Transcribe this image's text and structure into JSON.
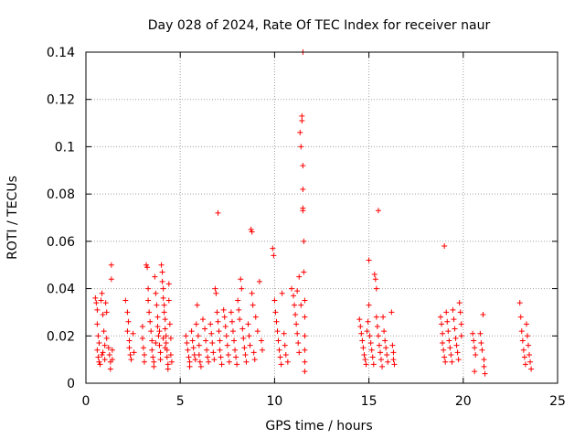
{
  "chart_data": {
    "type": "scatter",
    "title": "Day 028 of 2024, Rate Of TEC Index for receiver naur",
    "xlabel": "GPS time / hours",
    "ylabel": "ROTI / TECUs",
    "xlim": [
      0,
      25
    ],
    "ylim": [
      0,
      0.14
    ],
    "xticks": [
      0,
      5,
      10,
      15,
      20,
      25
    ],
    "xtick_labels": [
      "0",
      "5",
      "10",
      "15",
      "20",
      "25"
    ],
    "yticks": [
      0,
      0.02,
      0.04,
      0.06,
      0.08,
      0.1,
      0.12,
      0.14
    ],
    "ytick_labels": [
      "0",
      "0.02",
      "0.04",
      "0.06",
      "0.08",
      "0.1",
      "0.12",
      "0.14"
    ],
    "grid": true,
    "marker": "+",
    "color": "#ff0000",
    "series": [
      {
        "name": "ROTI",
        "points": [
          [
            0.5,
            0.036
          ],
          [
            0.55,
            0.034
          ],
          [
            0.6,
            0.031
          ],
          [
            0.6,
            0.025
          ],
          [
            0.65,
            0.02
          ],
          [
            0.7,
            0.017
          ],
          [
            0.6,
            0.014
          ],
          [
            0.65,
            0.011
          ],
          [
            0.7,
            0.009
          ],
          [
            0.75,
            0.008
          ],
          [
            0.8,
            0.035
          ],
          [
            0.85,
            0.038
          ],
          [
            0.9,
            0.029
          ],
          [
            0.95,
            0.022
          ],
          [
            1.0,
            0.016
          ],
          [
            0.9,
            0.013
          ],
          [
            0.85,
            0.012
          ],
          [
            1.0,
            0.01
          ],
          [
            1.05,
            0.034
          ],
          [
            1.1,
            0.03
          ],
          [
            1.1,
            0.019
          ],
          [
            1.2,
            0.015
          ],
          [
            1.25,
            0.012
          ],
          [
            1.3,
            0.009
          ],
          [
            1.3,
            0.006
          ],
          [
            1.35,
            0.05
          ],
          [
            1.35,
            0.044
          ],
          [
            1.4,
            0.014
          ],
          [
            1.4,
            0.01
          ],
          [
            2.1,
            0.035
          ],
          [
            2.2,
            0.03
          ],
          [
            2.25,
            0.026
          ],
          [
            2.2,
            0.022
          ],
          [
            2.3,
            0.018
          ],
          [
            2.3,
            0.015
          ],
          [
            2.35,
            0.012
          ],
          [
            2.4,
            0.01
          ],
          [
            2.5,
            0.021
          ],
          [
            2.55,
            0.013
          ],
          [
            3.0,
            0.024
          ],
          [
            3.0,
            0.019
          ],
          [
            3.05,
            0.015
          ],
          [
            3.1,
            0.012
          ],
          [
            3.1,
            0.009
          ],
          [
            3.2,
            0.05
          ],
          [
            3.25,
            0.049
          ],
          [
            3.3,
            0.04
          ],
          [
            3.3,
            0.035
          ],
          [
            3.35,
            0.03
          ],
          [
            3.4,
            0.026
          ],
          [
            3.45,
            0.022
          ],
          [
            3.5,
            0.018
          ],
          [
            3.5,
            0.014
          ],
          [
            3.55,
            0.011
          ],
          [
            3.6,
            0.009
          ],
          [
            3.6,
            0.007
          ],
          [
            3.65,
            0.045
          ],
          [
            3.7,
            0.038
          ],
          [
            3.75,
            0.033
          ],
          [
            3.8,
            0.028
          ],
          [
            3.8,
            0.024
          ],
          [
            3.85,
            0.02
          ],
          [
            3.9,
            0.016
          ],
          [
            3.95,
            0.013
          ],
          [
            3.95,
            0.01
          ],
          [
            4.0,
            0.05
          ],
          [
            4.05,
            0.047
          ],
          [
            4.05,
            0.043
          ],
          [
            4.1,
            0.04
          ],
          [
            4.1,
            0.036
          ],
          [
            4.15,
            0.033
          ],
          [
            4.15,
            0.03
          ],
          [
            4.2,
            0.027
          ],
          [
            4.2,
            0.023
          ],
          [
            4.25,
            0.02
          ],
          [
            4.25,
            0.017
          ],
          [
            4.3,
            0.014
          ],
          [
            4.3,
            0.011
          ],
          [
            4.35,
            0.008
          ],
          [
            4.35,
            0.006
          ],
          [
            4.4,
            0.042
          ],
          [
            4.4,
            0.035
          ],
          [
            4.45,
            0.025
          ],
          [
            4.5,
            0.019
          ],
          [
            4.5,
            0.012
          ],
          [
            4.55,
            0.009
          ],
          [
            3.7,
            0.017
          ],
          [
            3.9,
            0.022
          ],
          [
            4.1,
            0.019
          ],
          [
            4.2,
            0.015
          ],
          [
            5.3,
            0.02
          ],
          [
            5.35,
            0.017
          ],
          [
            5.4,
            0.014
          ],
          [
            5.45,
            0.011
          ],
          [
            5.5,
            0.009
          ],
          [
            5.5,
            0.007
          ],
          [
            5.6,
            0.022
          ],
          [
            5.65,
            0.018
          ],
          [
            5.7,
            0.015
          ],
          [
            5.75,
            0.012
          ],
          [
            5.8,
            0.01
          ],
          [
            5.85,
            0.025
          ],
          [
            5.9,
            0.033
          ],
          [
            5.95,
            0.02
          ],
          [
            6.0,
            0.016
          ],
          [
            6.0,
            0.012
          ],
          [
            6.05,
            0.009
          ],
          [
            6.1,
            0.007
          ],
          [
            6.2,
            0.027
          ],
          [
            6.3,
            0.023
          ],
          [
            6.35,
            0.018
          ],
          [
            6.4,
            0.014
          ],
          [
            6.45,
            0.011
          ],
          [
            6.5,
            0.009
          ],
          [
            6.6,
            0.025
          ],
          [
            6.65,
            0.021
          ],
          [
            6.7,
            0.017
          ],
          [
            6.75,
            0.013
          ],
          [
            6.8,
            0.01
          ],
          [
            6.85,
            0.04
          ],
          [
            6.9,
            0.038
          ],
          [
            6.95,
            0.03
          ],
          [
            7.0,
            0.072
          ],
          [
            7.0,
            0.026
          ],
          [
            7.05,
            0.022
          ],
          [
            7.1,
            0.018
          ],
          [
            7.1,
            0.014
          ],
          [
            7.15,
            0.011
          ],
          [
            7.2,
            0.008
          ],
          [
            7.3,
            0.031
          ],
          [
            7.35,
            0.028
          ],
          [
            7.4,
            0.024
          ],
          [
            7.45,
            0.02
          ],
          [
            7.5,
            0.016
          ],
          [
            7.55,
            0.012
          ],
          [
            7.6,
            0.009
          ],
          [
            7.7,
            0.03
          ],
          [
            7.75,
            0.026
          ],
          [
            7.8,
            0.022
          ],
          [
            7.85,
            0.018
          ],
          [
            7.9,
            0.014
          ],
          [
            7.95,
            0.011
          ],
          [
            8.0,
            0.008
          ],
          [
            8.05,
            0.035
          ],
          [
            8.1,
            0.031
          ],
          [
            8.15,
            0.027
          ],
          [
            8.2,
            0.044
          ],
          [
            8.25,
            0.04
          ],
          [
            8.3,
            0.023
          ],
          [
            8.35,
            0.019
          ],
          [
            8.4,
            0.015
          ],
          [
            8.45,
            0.012
          ],
          [
            8.5,
            0.009
          ],
          [
            8.6,
            0.025
          ],
          [
            8.65,
            0.02
          ],
          [
            8.7,
            0.016
          ],
          [
            8.75,
            0.065
          ],
          [
            8.8,
            0.064
          ],
          [
            8.8,
            0.038
          ],
          [
            8.85,
            0.033
          ],
          [
            8.9,
            0.013
          ],
          [
            8.95,
            0.01
          ],
          [
            9.0,
            0.028
          ],
          [
            9.1,
            0.022
          ],
          [
            9.2,
            0.043
          ],
          [
            9.3,
            0.018
          ],
          [
            9.35,
            0.014
          ],
          [
            9.9,
            0.057
          ],
          [
            9.95,
            0.054
          ],
          [
            10.0,
            0.035
          ],
          [
            10.05,
            0.03
          ],
          [
            10.1,
            0.026
          ],
          [
            10.15,
            0.022
          ],
          [
            10.2,
            0.018
          ],
          [
            10.25,
            0.014
          ],
          [
            10.3,
            0.011
          ],
          [
            10.35,
            0.008
          ],
          [
            10.4,
            0.038
          ],
          [
            10.5,
            0.021
          ],
          [
            10.55,
            0.016
          ],
          [
            10.6,
            0.012
          ],
          [
            10.7,
            0.009
          ],
          [
            10.9,
            0.04
          ],
          [
            11.0,
            0.037
          ],
          [
            11.05,
            0.033
          ],
          [
            11.1,
            0.029
          ],
          [
            11.15,
            0.025
          ],
          [
            11.2,
            0.021
          ],
          [
            11.25,
            0.017
          ],
          [
            11.3,
            0.013
          ],
          [
            11.35,
            0.106
          ],
          [
            11.4,
            0.1
          ],
          [
            11.45,
            0.113
          ],
          [
            11.45,
            0.111
          ],
          [
            11.5,
            0.14
          ],
          [
            11.5,
            0.092
          ],
          [
            11.5,
            0.082
          ],
          [
            11.5,
            0.074
          ],
          [
            11.5,
            0.073
          ],
          [
            11.55,
            0.06
          ],
          [
            11.55,
            0.047
          ],
          [
            11.6,
            0.035
          ],
          [
            11.6,
            0.028
          ],
          [
            11.6,
            0.02
          ],
          [
            11.6,
            0.014
          ],
          [
            11.6,
            0.009
          ],
          [
            11.6,
            0.005
          ],
          [
            11.2,
            0.039
          ],
          [
            11.3,
            0.045
          ],
          [
            11.4,
            0.033
          ],
          [
            14.5,
            0.027
          ],
          [
            14.55,
            0.024
          ],
          [
            14.6,
            0.021
          ],
          [
            14.65,
            0.018
          ],
          [
            14.7,
            0.015
          ],
          [
            14.75,
            0.012
          ],
          [
            14.8,
            0.01
          ],
          [
            14.85,
            0.008
          ],
          [
            14.9,
            0.022
          ],
          [
            14.95,
            0.026
          ],
          [
            15.0,
            0.052
          ],
          [
            15.0,
            0.033
          ],
          [
            15.05,
            0.02
          ],
          [
            15.1,
            0.017
          ],
          [
            15.15,
            0.014
          ],
          [
            15.2,
            0.011
          ],
          [
            15.25,
            0.008
          ],
          [
            15.3,
            0.046
          ],
          [
            15.35,
            0.044
          ],
          [
            15.4,
            0.04
          ],
          [
            15.4,
            0.028
          ],
          [
            15.45,
            0.024
          ],
          [
            15.5,
            0.073
          ],
          [
            15.5,
            0.02
          ],
          [
            15.55,
            0.016
          ],
          [
            15.6,
            0.013
          ],
          [
            15.65,
            0.01
          ],
          [
            15.7,
            0.007
          ],
          [
            15.75,
            0.028
          ],
          [
            15.8,
            0.022
          ],
          [
            15.85,
            0.018
          ],
          [
            15.9,
            0.015
          ],
          [
            15.95,
            0.012
          ],
          [
            16.0,
            0.009
          ],
          [
            16.2,
            0.03
          ],
          [
            16.25,
            0.016
          ],
          [
            16.3,
            0.013
          ],
          [
            16.3,
            0.01
          ],
          [
            16.35,
            0.008
          ],
          [
            18.8,
            0.028
          ],
          [
            18.85,
            0.025
          ],
          [
            18.9,
            0.021
          ],
          [
            18.9,
            0.017
          ],
          [
            18.95,
            0.014
          ],
          [
            19.0,
            0.058
          ],
          [
            19.0,
            0.011
          ],
          [
            19.05,
            0.009
          ],
          [
            19.1,
            0.03
          ],
          [
            19.15,
            0.026
          ],
          [
            19.2,
            0.022
          ],
          [
            19.25,
            0.018
          ],
          [
            19.3,
            0.015
          ],
          [
            19.35,
            0.012
          ],
          [
            19.4,
            0.009
          ],
          [
            19.45,
            0.031
          ],
          [
            19.5,
            0.027
          ],
          [
            19.55,
            0.023
          ],
          [
            19.6,
            0.019
          ],
          [
            19.65,
            0.016
          ],
          [
            19.7,
            0.013
          ],
          [
            19.75,
            0.01
          ],
          [
            19.8,
            0.034
          ],
          [
            19.85,
            0.03
          ],
          [
            19.9,
            0.025
          ],
          [
            19.9,
            0.02
          ],
          [
            20.5,
            0.021
          ],
          [
            20.55,
            0.018
          ],
          [
            20.6,
            0.015
          ],
          [
            20.65,
            0.012
          ],
          [
            20.6,
            0.005
          ],
          [
            20.9,
            0.021
          ],
          [
            20.95,
            0.017
          ],
          [
            21.0,
            0.014
          ],
          [
            21.05,
            0.029
          ],
          [
            21.1,
            0.01
          ],
          [
            21.1,
            0.007
          ],
          [
            21.15,
            0.004
          ],
          [
            23.0,
            0.034
          ],
          [
            23.05,
            0.028
          ],
          [
            23.1,
            0.022
          ],
          [
            23.15,
            0.018
          ],
          [
            23.2,
            0.014
          ],
          [
            23.25,
            0.011
          ],
          [
            23.3,
            0.008
          ],
          [
            23.35,
            0.025
          ],
          [
            23.4,
            0.02
          ],
          [
            23.45,
            0.016
          ],
          [
            23.5,
            0.012
          ],
          [
            23.55,
            0.009
          ],
          [
            23.6,
            0.006
          ]
        ]
      }
    ]
  }
}
